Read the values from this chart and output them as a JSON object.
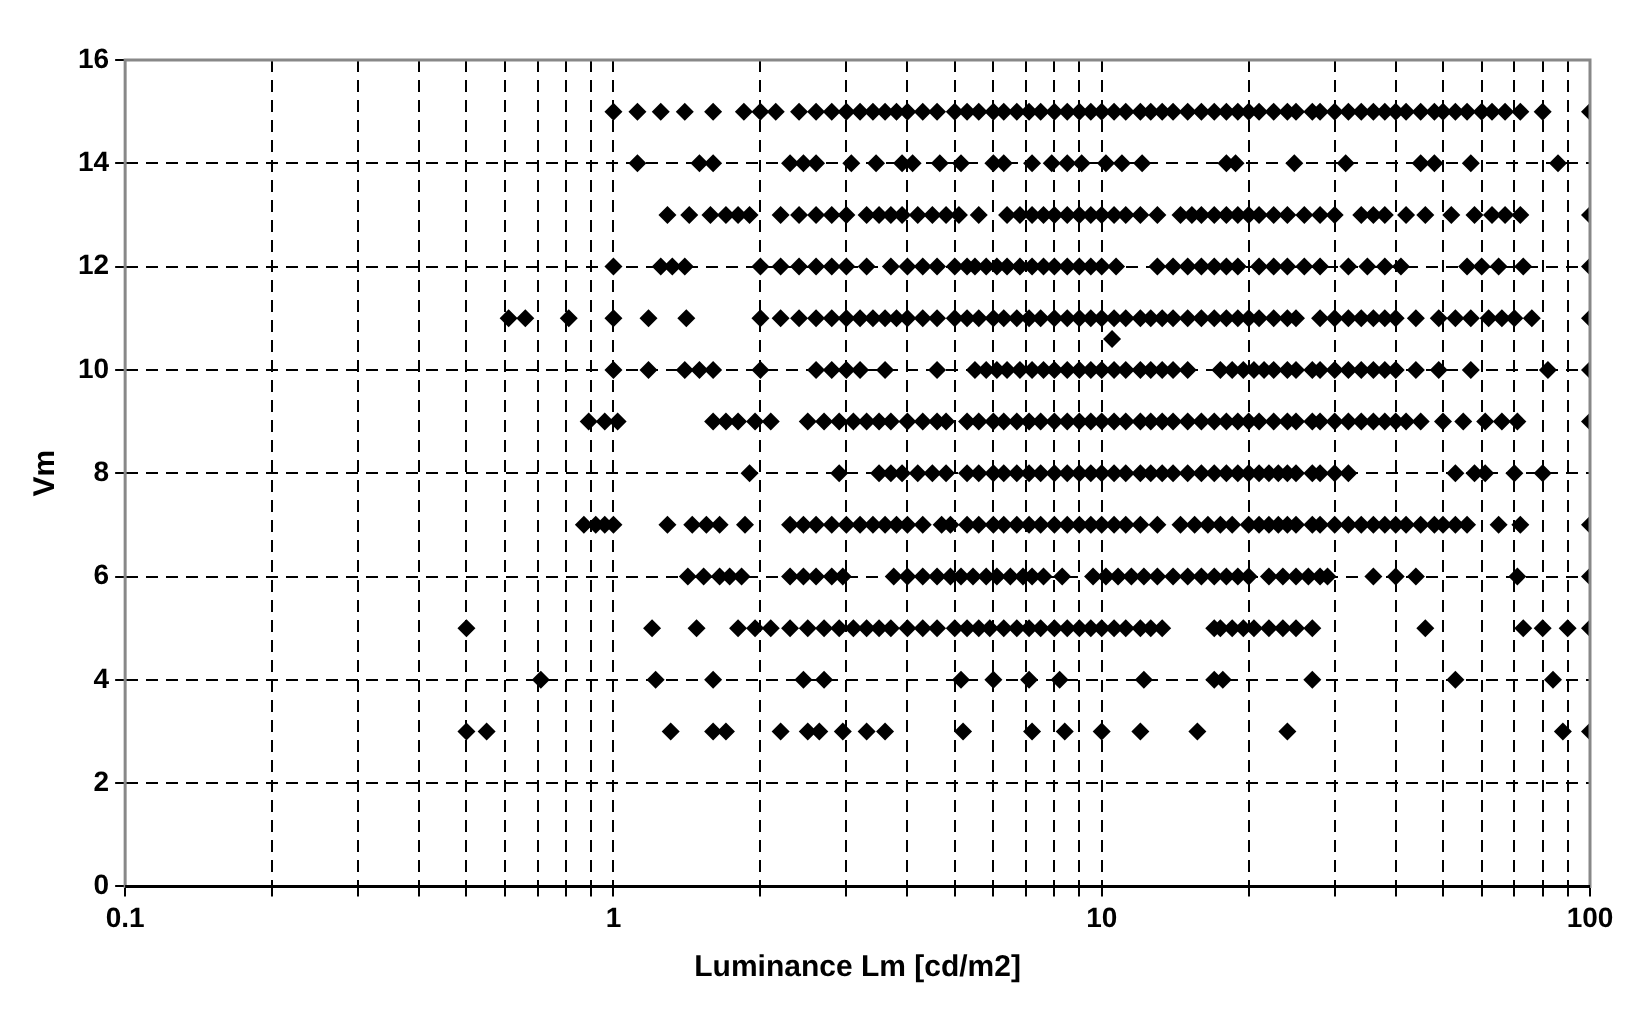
{
  "chart_data": {
    "type": "scatter",
    "xlabel": "Luminance Lm [cd/m2]",
    "ylabel": "Vm",
    "log": "x",
    "grid": true,
    "legend": false,
    "marker": "diamond",
    "xlim": [
      0.1,
      100
    ],
    "ylim": [
      0,
      16
    ],
    "xticks": [
      0.1,
      {
        "value": 0.2,
        "label": null
      },
      {
        "value": 0.3,
        "label": null
      },
      {
        "value": 0.4,
        "label": null
      },
      {
        "value": 0.5,
        "label": null
      },
      {
        "value": 0.6,
        "label": null
      },
      {
        "value": 0.7,
        "label": null
      },
      {
        "value": 0.8,
        "label": null
      },
      {
        "value": 0.9,
        "label": null
      },
      1,
      {
        "value": 2,
        "label": null
      },
      {
        "value": 3,
        "label": null
      },
      {
        "value": 4,
        "label": null
      },
      {
        "value": 5,
        "label": null
      },
      {
        "value": 6,
        "label": null
      },
      {
        "value": 7,
        "label": null
      },
      {
        "value": 8,
        "label": null
      },
      {
        "value": 9,
        "label": null
      },
      10,
      {
        "value": 20,
        "label": null
      },
      {
        "value": 30,
        "label": null
      },
      {
        "value": 40,
        "label": null
      },
      {
        "value": 50,
        "label": null
      },
      {
        "value": 60,
        "label": null
      },
      {
        "value": 70,
        "label": null
      },
      {
        "value": 80,
        "label": null
      },
      {
        "value": 90,
        "label": null
      },
      100
    ],
    "yticks": [
      0,
      2,
      4,
      6,
      8,
      10,
      12,
      14,
      16
    ],
    "series": [
      {
        "color": "#000000",
        "x": [
          1.0,
          1.12,
          1.25,
          1.4,
          1.6,
          1.85,
          2.0,
          2.15,
          2.4,
          2.6,
          2.8,
          3.0,
          3.2,
          3.4,
          3.6,
          3.8,
          4.0,
          4.3,
          4.6,
          5.0,
          5.3,
          5.6,
          6.0,
          6.3,
          6.7,
          7.1,
          7.5,
          8.0,
          8.5,
          9.0,
          9.5,
          10,
          10.6,
          11.2,
          12,
          12.6,
          13.3,
          14,
          15,
          16,
          17,
          18,
          19,
          20,
          21,
          22.5,
          24,
          25,
          27,
          28,
          30,
          32,
          34,
          36,
          38,
          40,
          42,
          45,
          48,
          50,
          53,
          56,
          60,
          63,
          67,
          72,
          80,
          100,
          1.12,
          1.5,
          1.6,
          2.3,
          2.45,
          2.6,
          3.07,
          3.45,
          3.9,
          4.1,
          4.66,
          5.15,
          6.0,
          6.3,
          7.2,
          7.9,
          8.5,
          9.1,
          10.2,
          11,
          12.1,
          18,
          18.8,
          24.8,
          31.6,
          45,
          48,
          57,
          86,
          1.29,
          1.43,
          1.58,
          1.7,
          1.8,
          1.9,
          2.2,
          2.4,
          2.6,
          2.8,
          3.0,
          3.3,
          3.5,
          3.7,
          3.9,
          4.2,
          4.5,
          4.8,
          5.1,
          5.6,
          6.4,
          6.8,
          7.2,
          7.6,
          8.0,
          8.5,
          9.0,
          9.5,
          10,
          10.6,
          11.2,
          12,
          13,
          14.5,
          15.3,
          16,
          17,
          18,
          19,
          20,
          21,
          22.5,
          24,
          26,
          28,
          30,
          34,
          36,
          38,
          42,
          46,
          52,
          58,
          63,
          67,
          72,
          100,
          1.0,
          1.25,
          1.32,
          1.4,
          2.0,
          2.2,
          2.4,
          2.6,
          2.8,
          3.0,
          3.3,
          3.7,
          4.0,
          4.3,
          4.6,
          5.0,
          5.3,
          5.5,
          5.8,
          6.1,
          6.4,
          6.8,
          7.2,
          7.6,
          8.0,
          8.5,
          9.0,
          9.5,
          10,
          10.7,
          13,
          14,
          15,
          16,
          17,
          18,
          19,
          21,
          22.5,
          24,
          26,
          28,
          32,
          35,
          38,
          41,
          56,
          60,
          65,
          73,
          100,
          0.61,
          0.66,
          0.81,
          1.0,
          1.18,
          1.41,
          2.0,
          2.2,
          2.4,
          2.6,
          2.8,
          3.0,
          3.2,
          3.4,
          3.6,
          3.8,
          4.0,
          4.3,
          4.6,
          5.0,
          5.3,
          5.6,
          6.0,
          6.3,
          6.7,
          7.1,
          7.5,
          8.0,
          8.5,
          9.0,
          9.5,
          10,
          10.6,
          11.2,
          12,
          12.6,
          13.3,
          14,
          15,
          16,
          17,
          18,
          19,
          20,
          21,
          22.5,
          24,
          25,
          28,
          30,
          32,
          34,
          36,
          38,
          40,
          44,
          49,
          53,
          57,
          62,
          66,
          70,
          76,
          100,
          10.5,
          1.0,
          1.18,
          1.4,
          1.5,
          1.6,
          2.0,
          2.6,
          2.8,
          3.0,
          3.2,
          3.6,
          4.6,
          5.5,
          5.8,
          6.1,
          6.4,
          6.8,
          7.2,
          7.6,
          8.0,
          8.5,
          9.0,
          9.5,
          10,
          10.6,
          11.2,
          12,
          12.6,
          13.3,
          14,
          15,
          17.5,
          18.5,
          19.5,
          20.5,
          21.5,
          22.5,
          24,
          25,
          27,
          28,
          30,
          32,
          34,
          36,
          38,
          40,
          44,
          49,
          57,
          82,
          100,
          0.89,
          0.96,
          1.02,
          1.6,
          1.7,
          1.8,
          1.95,
          2.1,
          2.5,
          2.7,
          2.9,
          3.1,
          3.3,
          3.5,
          3.7,
          4.0,
          4.3,
          4.6,
          4.8,
          5.3,
          5.6,
          6.0,
          6.3,
          6.7,
          7.1,
          7.5,
          8.0,
          8.5,
          9.0,
          9.5,
          10,
          10.6,
          11.2,
          12,
          12.6,
          13.3,
          14,
          15,
          16,
          17,
          18,
          19,
          20,
          21,
          22.5,
          24,
          25,
          27,
          28,
          30,
          32,
          34,
          36,
          38,
          40,
          42,
          45,
          50,
          55,
          61,
          66,
          71,
          100,
          1.9,
          2.9,
          3.5,
          3.7,
          3.9,
          4.2,
          4.5,
          4.8,
          5.3,
          5.6,
          6.0,
          6.3,
          6.7,
          7.1,
          7.5,
          8.0,
          8.5,
          9.0,
          9.5,
          10,
          10.6,
          11.2,
          12,
          12.6,
          13.3,
          14,
          15,
          16,
          17,
          18,
          19,
          20,
          21,
          22,
          23,
          24,
          25,
          27,
          28,
          30,
          32,
          53,
          58,
          61,
          70,
          80,
          0.87,
          0.92,
          0.96,
          1.0,
          1.29,
          1.45,
          1.55,
          1.65,
          1.86,
          2.3,
          2.45,
          2.6,
          2.8,
          3.0,
          3.2,
          3.4,
          3.6,
          3.8,
          4.0,
          4.3,
          4.7,
          4.9,
          5.3,
          5.6,
          6.0,
          6.3,
          6.7,
          7.1,
          7.5,
          8.0,
          8.5,
          9.0,
          9.5,
          10,
          10.6,
          11.2,
          12,
          13,
          14.5,
          15.5,
          16.5,
          17.5,
          18.5,
          20,
          21,
          22,
          23,
          24,
          25,
          27,
          28,
          30,
          32,
          34,
          36,
          38,
          40,
          42,
          45,
          48,
          50,
          53,
          56,
          65,
          72,
          100,
          1.42,
          1.53,
          1.65,
          1.73,
          1.83,
          2.3,
          2.45,
          2.6,
          2.8,
          2.95,
          3.75,
          4.0,
          4.3,
          4.6,
          4.9,
          5.15,
          5.45,
          5.8,
          6.1,
          6.5,
          6.9,
          7.2,
          7.6,
          8.3,
          9.6,
          10.2,
          10.8,
          11.5,
          12.2,
          13,
          14,
          15,
          16,
          17,
          18,
          19,
          20,
          22,
          23.5,
          25,
          26.5,
          28,
          29,
          36,
          40,
          44,
          71,
          100,
          0.5,
          1.2,
          1.48,
          1.8,
          1.95,
          2.1,
          2.3,
          2.5,
          2.7,
          2.9,
          3.1,
          3.3,
          3.5,
          3.7,
          4.0,
          4.3,
          4.6,
          5.0,
          5.3,
          5.6,
          5.9,
          6.3,
          6.7,
          7.1,
          7.5,
          8.0,
          8.5,
          9.0,
          9.5,
          10,
          10.6,
          11.2,
          12,
          12.6,
          13.3,
          17,
          17.5,
          18.5,
          19.5,
          20.5,
          22,
          23.5,
          25,
          27,
          46,
          73,
          80,
          90,
          100,
          0.71,
          1.22,
          1.6,
          2.45,
          2.7,
          5.15,
          6.0,
          7.1,
          8.2,
          12.2,
          17,
          17.7,
          27,
          53,
          84,
          0.5,
          0.55,
          1.31,
          1.6,
          1.7,
          2.2,
          2.5,
          2.64,
          2.95,
          3.3,
          3.6,
          5.2,
          7.2,
          8.4,
          10,
          12,
          15.7,
          24,
          88,
          100
        ],
        "values": [
          15,
          15,
          15,
          15,
          15,
          15,
          15,
          15,
          15,
          15,
          15,
          15,
          15,
          15,
          15,
          15,
          15,
          15,
          15,
          15,
          15,
          15,
          15,
          15,
          15,
          15,
          15,
          15,
          15,
          15,
          15,
          15,
          15,
          15,
          15,
          15,
          15,
          15,
          15,
          15,
          15,
          15,
          15,
          15,
          15,
          15,
          15,
          15,
          15,
          15,
          15,
          15,
          15,
          15,
          15,
          15,
          15,
          15,
          15,
          15,
          15,
          15,
          15,
          15,
          15,
          15,
          15,
          15,
          14,
          14,
          14,
          14,
          14,
          14,
          14,
          14,
          14,
          14,
          14,
          14,
          14,
          14,
          14,
          14,
          14,
          14,
          14,
          14,
          14,
          14,
          14,
          14,
          14,
          14,
          14,
          14,
          14,
          13,
          13,
          13,
          13,
          13,
          13,
          13,
          13,
          13,
          13,
          13,
          13,
          13,
          13,
          13,
          13,
          13,
          13,
          13,
          13,
          13,
          13,
          13,
          13,
          13,
          13,
          13,
          13,
          13,
          13,
          13,
          13,
          13,
          13,
          13,
          13,
          13,
          13,
          13,
          13,
          13,
          13,
          13,
          13,
          13,
          13,
          13,
          13,
          13,
          13,
          13,
          13,
          13,
          13,
          13,
          13,
          13,
          12,
          12,
          12,
          12,
          12,
          12,
          12,
          12,
          12,
          12,
          12,
          12,
          12,
          12,
          12,
          12,
          12,
          12,
          12,
          12,
          12,
          12,
          12,
          12,
          12,
          12,
          12,
          12,
          12,
          12,
          12,
          12,
          12,
          12,
          12,
          12,
          12,
          12,
          12,
          12,
          12,
          12,
          12,
          12,
          12,
          12,
          12,
          12,
          12,
          12,
          12,
          11,
          11,
          11,
          11,
          11,
          11,
          11,
          11,
          11,
          11,
          11,
          11,
          11,
          11,
          11,
          11,
          11,
          11,
          11,
          11,
          11,
          11,
          11,
          11,
          11,
          11,
          11,
          11,
          11,
          11,
          11,
          11,
          11,
          11,
          11,
          11,
          11,
          11,
          11,
          11,
          11,
          11,
          11,
          11,
          11,
          11,
          11,
          11,
          11,
          11,
          11,
          11,
          11,
          11,
          11,
          11,
          11,
          11,
          11,
          11,
          11,
          11,
          11,
          11,
          10.6,
          10,
          10,
          10,
          10,
          10,
          10,
          10,
          10,
          10,
          10,
          10,
          10,
          10,
          10,
          10,
          10,
          10,
          10,
          10,
          10,
          10,
          10,
          10,
          10,
          10,
          10,
          10,
          10,
          10,
          10,
          10,
          10,
          10,
          10,
          10,
          10,
          10,
          10,
          10,
          10,
          10,
          10,
          10,
          10,
          10,
          10,
          10,
          10,
          10,
          10,
          10,
          10,
          9,
          9,
          9,
          9,
          9,
          9,
          9,
          9,
          9,
          9,
          9,
          9,
          9,
          9,
          9,
          9,
          9,
          9,
          9,
          9,
          9,
          9,
          9,
          9,
          9,
          9,
          9,
          9,
          9,
          9,
          9,
          9,
          9,
          9,
          9,
          9,
          9,
          9,
          9,
          9,
          9,
          9,
          9,
          9,
          9,
          9,
          9,
          9,
          9,
          9,
          9,
          9,
          9,
          9,
          9,
          9,
          9,
          9,
          9,
          9,
          9,
          9,
          9,
          8,
          8,
          8,
          8,
          8,
          8,
          8,
          8,
          8,
          8,
          8,
          8,
          8,
          8,
          8,
          8,
          8,
          8,
          8,
          8,
          8,
          8,
          8,
          8,
          8,
          8,
          8,
          8,
          8,
          8,
          8,
          8,
          8,
          8,
          8,
          8,
          8,
          8,
          8,
          8,
          8,
          8,
          8,
          8,
          8,
          8,
          7,
          7,
          7,
          7,
          7,
          7,
          7,
          7,
          7,
          7,
          7,
          7,
          7,
          7,
          7,
          7,
          7,
          7,
          7,
          7,
          7,
          7,
          7,
          7,
          7,
          7,
          7,
          7,
          7,
          7,
          7,
          7,
          7,
          7,
          7,
          7,
          7,
          7,
          7,
          7,
          7,
          7,
          7,
          7,
          7,
          7,
          7,
          7,
          7,
          7,
          7,
          7,
          7,
          7,
          7,
          7,
          7,
          7,
          7,
          7,
          7,
          7,
          7,
          7,
          7,
          7,
          6,
          6,
          6,
          6,
          6,
          6,
          6,
          6,
          6,
          6,
          6,
          6,
          6,
          6,
          6,
          6,
          6,
          6,
          6,
          6,
          6,
          6,
          6,
          6,
          6,
          6,
          6,
          6,
          6,
          6,
          6,
          6,
          6,
          6,
          6,
          6,
          6,
          6,
          6,
          6,
          6,
          6,
          6,
          6,
          6,
          6,
          6,
          6,
          5,
          5,
          5,
          5,
          5,
          5,
          5,
          5,
          5,
          5,
          5,
          5,
          5,
          5,
          5,
          5,
          5,
          5,
          5,
          5,
          5,
          5,
          5,
          5,
          5,
          5,
          5,
          5,
          5,
          5,
          5,
          5,
          5,
          5,
          5,
          5,
          5,
          5,
          5,
          5,
          5,
          5,
          5,
          5,
          5,
          5,
          5,
          5,
          5,
          4,
          4,
          4,
          4,
          4,
          4,
          4,
          4,
          4,
          4,
          4,
          4,
          4,
          4,
          4,
          3,
          3,
          3,
          3,
          3,
          3,
          3,
          3,
          3,
          3,
          3,
          3,
          3,
          3,
          3,
          3,
          3,
          3,
          3,
          3
        ]
      }
    ]
  }
}
